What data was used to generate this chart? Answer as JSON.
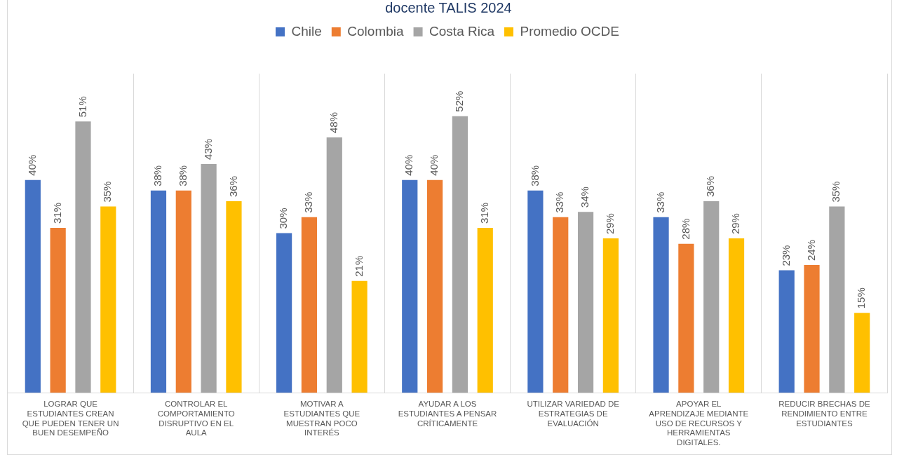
{
  "chart_data": {
    "type": "bar",
    "title": "docente TALIS 2024",
    "categories": [
      "LOGRAR QUE ESTUDIANTES CREAN QUE PUEDEN TENER UN BUEN DESEMPEÑO",
      "CONTROLAR EL COMPORTAMIENTO DISRUPTIVO EN EL AULA",
      "MOTIVAR A ESTUDIANTES QUE MUESTRAN POCO INTERÉS",
      "AYUDAR A LOS ESTUDIANTES A PENSAR CRÍTICAMENTE",
      "UTILIZAR VARIEDAD DE ESTRATEGIAS DE EVALUACIÓN",
      "APOYAR EL APRENDIZAJE MEDIANTE USO DE RECURSOS Y HERRAMIENTAS DIGITALES.",
      "REDUCIR BRECHAS DE RENDIMIENTO ENTRE ESTUDIANTES"
    ],
    "series": [
      {
        "name": "Chile",
        "color": "#4472c4",
        "values": [
          40,
          38,
          30,
          40,
          38,
          33,
          23
        ],
        "value_labels": [
          "40%",
          "38%",
          "30%",
          "40%",
          "38%",
          "33%",
          "23%"
        ]
      },
      {
        "name": "Colombia",
        "color": "#ed7d31",
        "values": [
          31,
          38,
          33,
          40,
          33,
          28,
          24
        ],
        "value_labels": [
          "31%",
          "38%",
          "33%",
          "40%",
          "33%",
          "28%",
          "24%"
        ]
      },
      {
        "name": "Costa Rica",
        "color": "#a5a5a5",
        "values": [
          51,
          43,
          48,
          52,
          34,
          36,
          35
        ],
        "value_labels": [
          "51%",
          "43%",
          "48%",
          "52%",
          "34%",
          "36%",
          "35%"
        ]
      },
      {
        "name": "Promedio OCDE",
        "color": "#ffc000",
        "values": [
          35,
          36,
          21,
          31,
          29,
          29,
          15
        ],
        "value_labels": [
          "35%",
          "36%",
          "21%",
          "31%",
          "29%",
          "29%",
          "15%"
        ]
      }
    ],
    "grid": "x",
    "legend": "top",
    "tick_labels": "x"
  }
}
